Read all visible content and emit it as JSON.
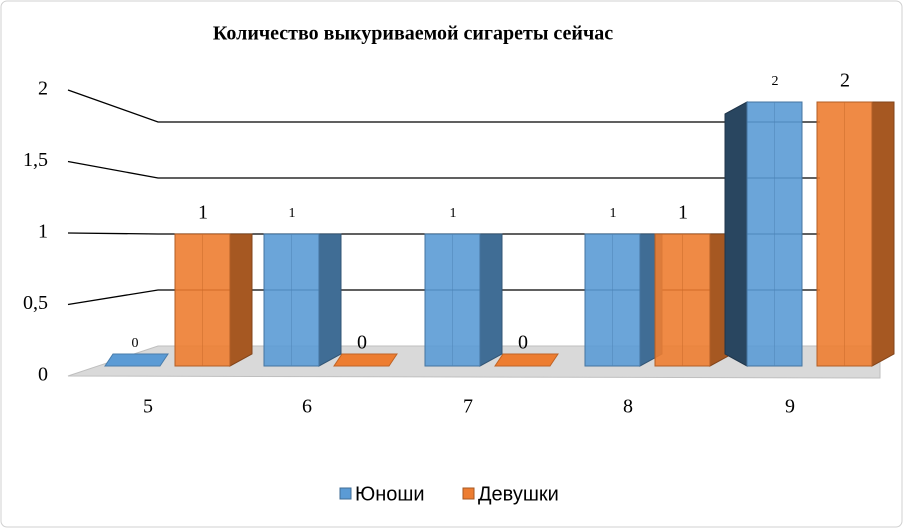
{
  "chart_data": {
    "type": "bar3d",
    "title": "Количество выкуриваемой сигареты сейчас",
    "categories": [
      "5",
      "6",
      "7",
      "8",
      "9"
    ],
    "series": [
      {
        "name": "Юноши",
        "color": "#5b9bd5",
        "values": [
          0,
          1,
          1,
          1,
          2
        ]
      },
      {
        "name": "Девушки",
        "color": "#ed7d31",
        "values": [
          1,
          0,
          0,
          1,
          2
        ]
      }
    ],
    "ylim": [
      0,
      2
    ],
    "yticks": [
      0,
      {
        "value": 0.5,
        "label": "0,5"
      },
      1,
      {
        "value": 1.5,
        "label": "1,5"
      },
      2
    ],
    "grid": true,
    "legend": "bottom"
  }
}
